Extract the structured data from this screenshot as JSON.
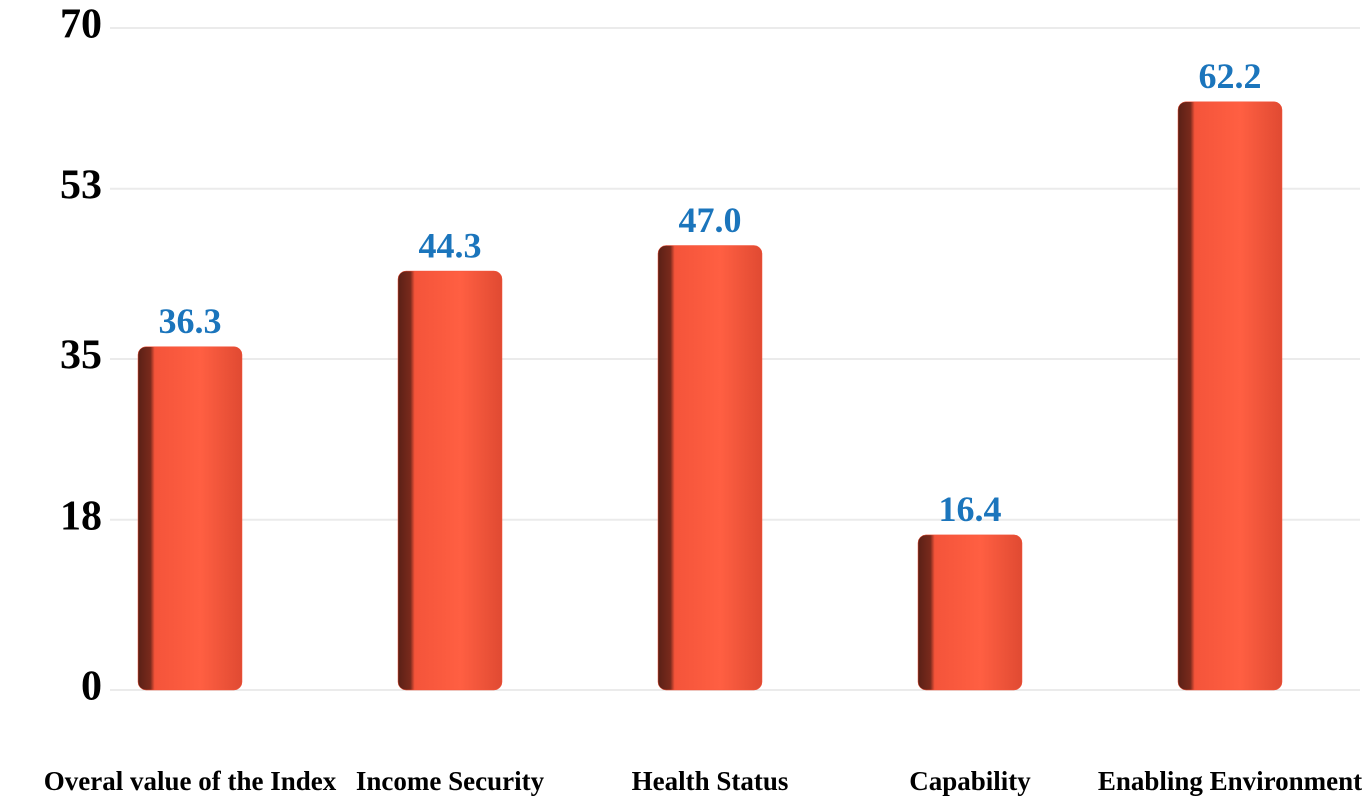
{
  "chart_data": {
    "type": "bar",
    "categories": [
      "Overal value of the Index",
      "Income Security",
      "Health Status",
      "Capability",
      "Enabling Environment"
    ],
    "values": [
      36.3,
      44.3,
      47.0,
      16.4,
      62.2
    ],
    "value_labels": [
      "36.3",
      "44.3",
      "47.0",
      "16.4",
      "62.2"
    ],
    "color": "#f4543a",
    "label_color": "#1b75bc",
    "ylim": [
      0,
      70
    ],
    "yticks": [
      0,
      18,
      35,
      53,
      70
    ],
    "grid": true
  }
}
